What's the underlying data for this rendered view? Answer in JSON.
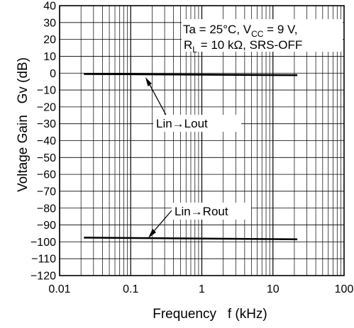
{
  "chart_data": {
    "type": "line",
    "xlabel": "Frequency   f (kHz)",
    "ylabel": "Voltage Gain   Gv (dB)",
    "x_scale": "log",
    "xlim": [
      0.01,
      100
    ],
    "ylim": [
      -120,
      40
    ],
    "x_ticks": [
      "0.01",
      "0.1",
      "1",
      "10",
      "100"
    ],
    "y_ticks": [
      "40",
      "30",
      "20",
      "10",
      "0",
      "−10",
      "−20",
      "−30",
      "−40",
      "−50",
      "−60",
      "−70",
      "−80",
      "−90",
      "−100",
      "−110",
      "−120"
    ],
    "grid": true,
    "series": [
      {
        "name": "Lin→Lout",
        "x": [
          0.022,
          22
        ],
        "y": [
          -0.5,
          -1.2
        ]
      },
      {
        "name": "Lin→Rout",
        "x": [
          0.022,
          22
        ],
        "y": [
          -97.5,
          -98.5
        ]
      }
    ],
    "conditions": {
      "line1": {
        "ta": "Ta = 25°C, V",
        "cc_sub": "CC",
        "vcc": " = 9 V,"
      },
      "line2": {
        "r": "R",
        "l_sub": "L",
        "rest": " = 10 kΩ, SRS-OFF"
      }
    },
    "annotations": [
      {
        "text": "Lin→Lout",
        "target_series": 0
      },
      {
        "text": "Lin→Rout",
        "target_series": 1
      }
    ]
  }
}
